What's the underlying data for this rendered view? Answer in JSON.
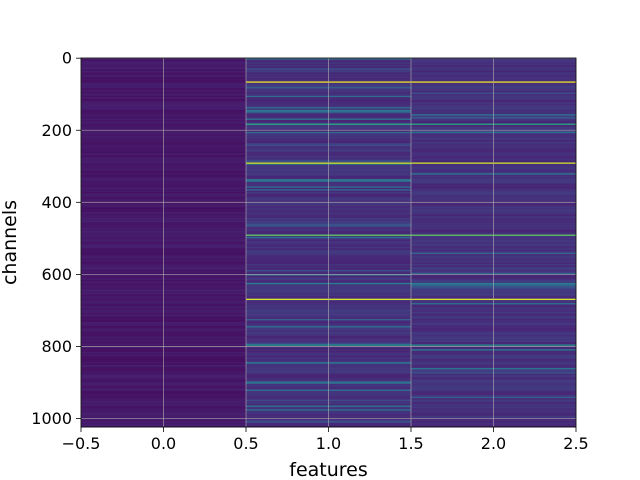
{
  "chart_data": {
    "type": "heatmap",
    "title": "",
    "xlabel": "features",
    "ylabel": "channels",
    "columns": 3,
    "rows": 1024,
    "xlim": [
      -0.5,
      2.5
    ],
    "ylim": [
      1023.5,
      -0.5
    ],
    "x_ticks": [
      "−0.5",
      "0.0",
      "0.5",
      "1.0",
      "1.5",
      "2.0",
      "2.5"
    ],
    "x_tick_values": [
      -0.5,
      0.0,
      0.5,
      1.0,
      1.5,
      2.0,
      2.5
    ],
    "y_ticks": [
      "0",
      "200",
      "400",
      "600",
      "800",
      "1000"
    ],
    "y_tick_values": [
      0,
      200,
      400,
      600,
      800,
      1000
    ],
    "grid": true,
    "colormap": "viridis",
    "colormap_stops": [
      "#440154",
      "#482878",
      "#3e4989",
      "#31688e",
      "#26828e",
      "#1f9e89",
      "#35b779",
      "#6ece58",
      "#b5de2b",
      "#fde725"
    ],
    "column_base_level": [
      0.04,
      0.1,
      0.1
    ],
    "bright_rows": [
      {
        "row": 65,
        "columns": [
          1,
          2
        ],
        "level": 0.97
      },
      {
        "row": 105,
        "columns": [
          1
        ],
        "level": 0.35
      },
      {
        "row": 182,
        "columns": [
          1,
          2
        ],
        "level": 0.6
      },
      {
        "row": 205,
        "columns": [
          1
        ],
        "level": 0.35
      },
      {
        "row": 290,
        "columns": [
          1,
          2
        ],
        "level": 0.92
      },
      {
        "row": 490,
        "columns": [
          1,
          2
        ],
        "level": 0.75
      },
      {
        "row": 668,
        "columns": [
          1,
          2
        ],
        "level": 0.95
      },
      {
        "row": 795,
        "columns": [
          1,
          2
        ],
        "level": 0.5
      },
      {
        "row": 975,
        "columns": [
          1
        ],
        "level": 0.4
      }
    ]
  }
}
